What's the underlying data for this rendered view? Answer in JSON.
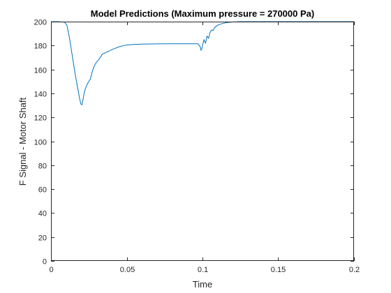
{
  "chart_data": {
    "type": "line",
    "title": "Model Predictions (Maximum pressure = 270000 Pa)",
    "xlabel": "Time",
    "ylabel": "F Signal - Motor Shaft",
    "xlim": [
      0,
      0.2
    ],
    "ylim": [
      0,
      200
    ],
    "xticks": [
      0,
      0.05,
      0.1,
      0.15,
      0.2
    ],
    "xtick_labels": [
      "0",
      "0.05",
      "0.1",
      "0.15",
      "0.2"
    ],
    "yticks": [
      0,
      20,
      40,
      60,
      80,
      100,
      120,
      140,
      160,
      180,
      200
    ],
    "ytick_labels": [
      "0",
      "20",
      "40",
      "60",
      "80",
      "100",
      "120",
      "140",
      "160",
      "180",
      "200"
    ],
    "grid": false,
    "box": true,
    "line_color": "#0072BD",
    "series": [
      {
        "x": [
          0,
          0.005,
          0.009,
          0.0105,
          0.012,
          0.014,
          0.016,
          0.018,
          0.019,
          0.0198,
          0.0205,
          0.021,
          0.022,
          0.023,
          0.024,
          0.025,
          0.026,
          0.027,
          0.028,
          0.029,
          0.03,
          0.032,
          0.034,
          0.036,
          0.04,
          0.045,
          0.05,
          0.055,
          0.06,
          0.07,
          0.08,
          0.09,
          0.097,
          0.0985,
          0.099,
          0.0995,
          0.1,
          0.101,
          0.102,
          0.103,
          0.104,
          0.105,
          0.106,
          0.107,
          0.108,
          0.11,
          0.112,
          0.115,
          0.118,
          0.121,
          0.125,
          0.13,
          0.15,
          0.2
        ],
        "y": [
          200,
          200,
          199.5,
          197,
          188,
          172,
          156,
          142,
          135,
          131,
          130.5,
          134,
          141,
          145,
          148,
          150,
          152,
          157,
          161,
          164,
          166,
          169,
          173,
          174,
          176.5,
          179,
          180.5,
          181,
          181.2,
          181.4,
          181.5,
          181.5,
          181.5,
          179,
          176,
          177,
          180,
          185,
          182,
          188,
          186,
          191,
          193,
          192.5,
          195,
          197,
          198,
          199,
          199.5,
          199.8,
          200,
          200,
          200,
          200
        ]
      }
    ]
  }
}
